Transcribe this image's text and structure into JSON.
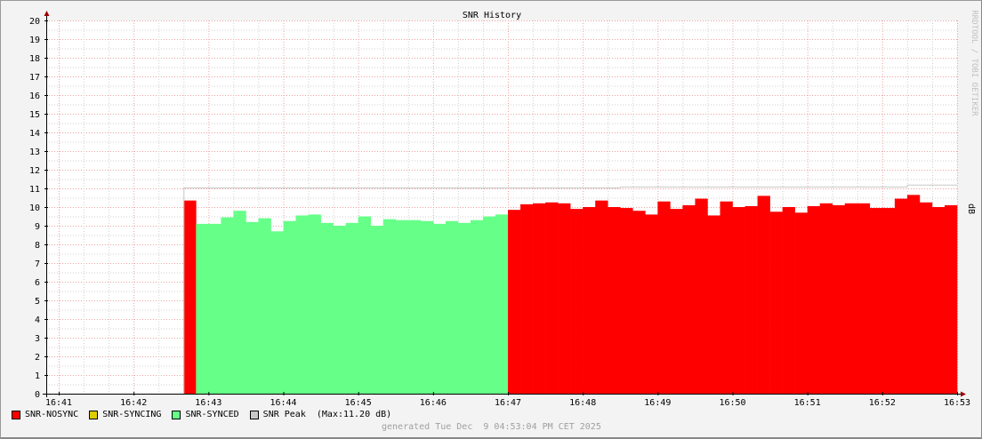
{
  "chart_data": {
    "type": "area",
    "title": "SNR History",
    "ylabel": "dB",
    "watermark": "RRDTOOL / TOBI OETIKER",
    "ylim": [
      0,
      20
    ],
    "yticks": [
      0,
      1,
      2,
      3,
      4,
      5,
      6,
      7,
      8,
      9,
      10,
      11,
      12,
      13,
      14,
      15,
      16,
      17,
      18,
      19,
      20
    ],
    "xlim": [
      "16:40:50",
      "16:53:00"
    ],
    "xticks": [
      "16:41",
      "16:42",
      "16:43",
      "16:44",
      "16:45",
      "16:46",
      "16:47",
      "16:48",
      "16:49",
      "16:50",
      "16:51",
      "16:52",
      "16:53"
    ],
    "step_seconds": 10,
    "grid": true,
    "legend_position": "bottom-left",
    "series": [
      {
        "name": "SNR-NOSYNC",
        "color": "#FF0000",
        "start": "16:42:40",
        "values": [
          10.35
        ]
      },
      {
        "name": "SNR-SYNCED",
        "color": "#66FF88",
        "start": "16:42:50",
        "values": [
          9.1,
          9.1,
          9.45,
          9.8,
          9.2,
          9.4,
          8.7,
          9.25,
          9.55,
          9.6,
          9.15,
          9.0,
          9.15,
          9.5,
          9.0,
          9.35,
          9.3,
          9.3,
          9.25,
          9.1,
          9.25,
          9.15,
          9.3,
          9.5,
          9.6
        ]
      },
      {
        "name": "SNR-NOSYNC",
        "color": "#FF0000",
        "start": "16:47:00",
        "values": [
          9.85,
          10.15,
          10.2,
          10.25,
          10.2,
          9.9,
          10.0,
          10.35,
          10.0,
          9.95,
          9.8,
          9.6,
          10.3,
          9.9,
          10.1,
          10.45,
          9.55,
          10.3,
          10.0,
          10.05,
          10.6,
          9.75,
          10.0,
          9.7,
          10.05,
          10.2,
          10.1,
          10.2,
          10.2,
          9.95,
          9.95,
          10.45,
          10.65,
          10.25,
          10.0,
          10.1
        ]
      },
      {
        "name": "SNR Peak",
        "color": "#C8C8C8",
        "type": "line",
        "segments": [
          {
            "from": "16:42:40",
            "to": "16:48:30",
            "value": 11.05
          },
          {
            "from": "16:48:30",
            "to": "16:52:20",
            "value": 11.1
          },
          {
            "from": "16:52:20",
            "to": "16:53:00",
            "value": 11.2
          }
        ]
      }
    ],
    "legend": [
      {
        "label": "SNR-NOSYNC",
        "color": "#FF0000"
      },
      {
        "label": "SNR-SYNCING",
        "color": "#DDCC00"
      },
      {
        "label": "SNR-SYNCED",
        "color": "#66FF88"
      },
      {
        "label": "SNR Peak",
        "color": "#C8C8C8",
        "note": "(Max:11.20 dB)"
      }
    ],
    "footer": "generated Tue Dec  9 04:53:04 PM CET 2025"
  }
}
